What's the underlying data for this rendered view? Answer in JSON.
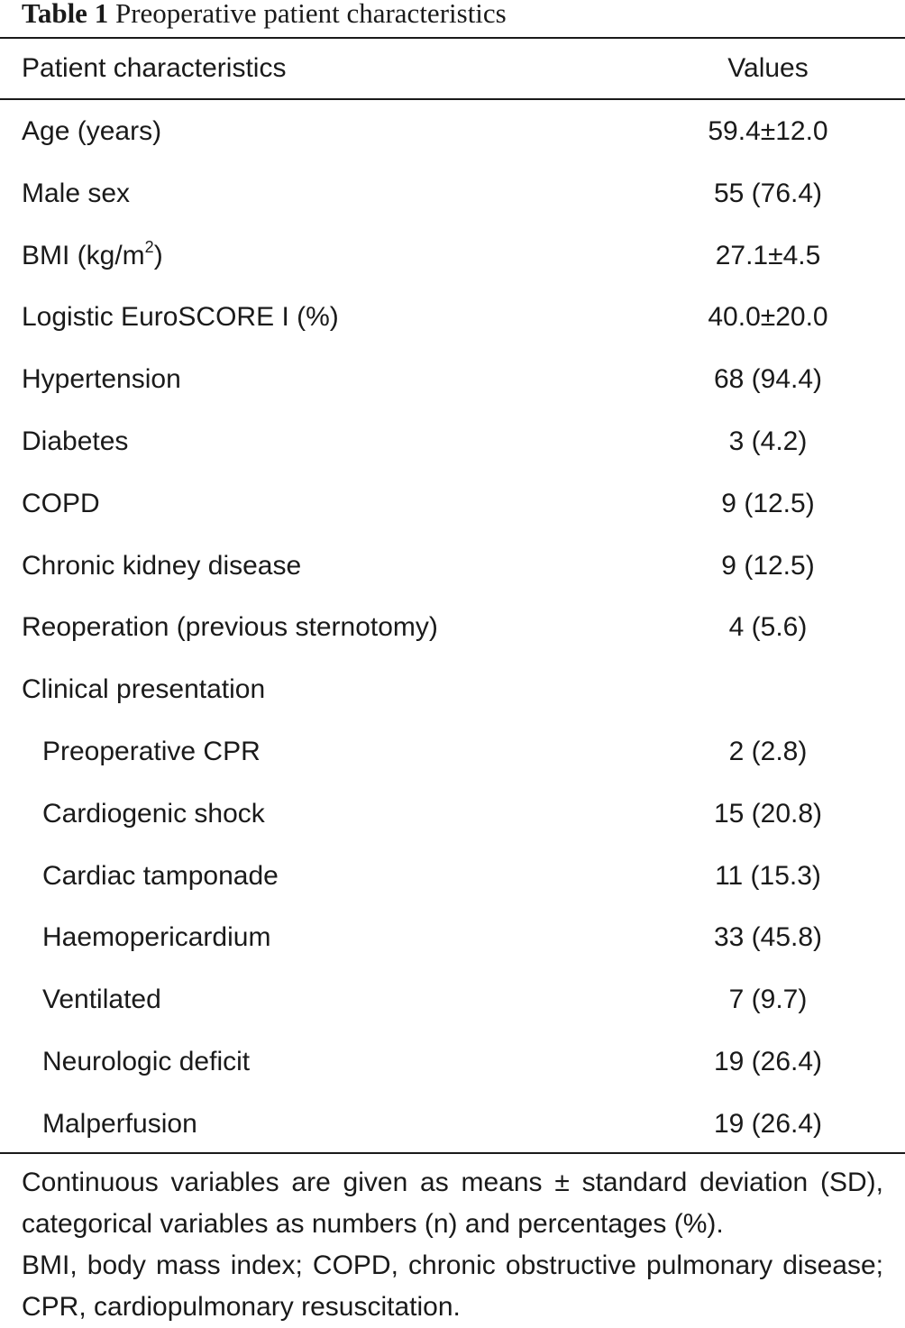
{
  "caption": {
    "label": "Table 1",
    "title": "Preoperative patient characteristics"
  },
  "table": {
    "columns": [
      "Patient characteristics",
      "Values"
    ],
    "rows": [
      {
        "label": "Age (years)",
        "value": "59.4±12.0",
        "indent": false
      },
      {
        "label": "Male sex",
        "value": "55 (76.4)",
        "indent": false
      },
      {
        "label": "BMI (kg/m",
        "label_sup": "2",
        "label_suffix": ")",
        "value": "27.1±4.5",
        "indent": false
      },
      {
        "label": "Logistic EuroSCORE I (%)",
        "value": "40.0±20.0",
        "indent": false
      },
      {
        "label": "Hypertension",
        "value": "68 (94.4)",
        "indent": false
      },
      {
        "label": "Diabetes",
        "value": "3 (4.2)",
        "indent": false
      },
      {
        "label": "COPD",
        "value": "9 (12.5)",
        "indent": false
      },
      {
        "label": "Chronic kidney disease",
        "value": "9 (12.5)",
        "indent": false
      },
      {
        "label": "Reoperation (previous sternotomy)",
        "value": "4 (5.6)",
        "indent": false
      },
      {
        "label": "Clinical presentation",
        "value": "",
        "indent": false
      },
      {
        "label": "Preoperative CPR",
        "value": "2 (2.8)",
        "indent": true
      },
      {
        "label": "Cardiogenic shock",
        "value": "15 (20.8)",
        "indent": true
      },
      {
        "label": "Cardiac tamponade",
        "value": "11 (15.3)",
        "indent": true
      },
      {
        "label": "Haemopericardium",
        "value": "33 (45.8)",
        "indent": true
      },
      {
        "label": "Ventilated",
        "value": "7 (9.7)",
        "indent": true
      },
      {
        "label": "Neurologic deficit",
        "value": "19 (26.4)",
        "indent": true
      },
      {
        "label": "Malperfusion",
        "value": "19 (26.4)",
        "indent": true
      }
    ]
  },
  "footnote": {
    "line1": "Continuous variables are given as means ± standard deviation (SD), categorical variables as numbers (n) and percentages (%).",
    "line2": "BMI, body mass index; COPD, chronic obstructive pulmonary disease; CPR, cardiopulmonary resuscitation."
  }
}
